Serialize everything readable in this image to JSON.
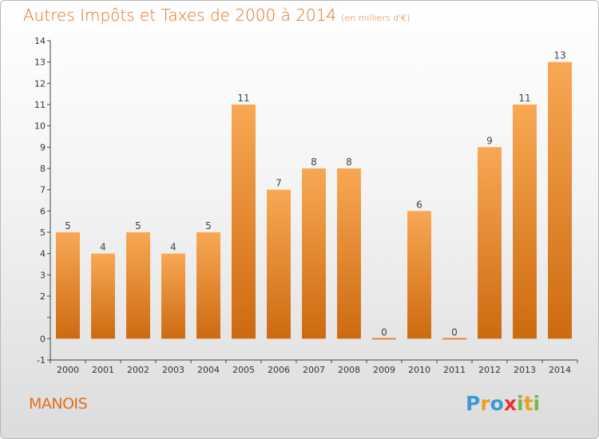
{
  "title": "Autres Impôts et Taxes de 2000 à 2014",
  "subtitle": "(en milliers d'€)",
  "commune": "MANOIS",
  "logo": {
    "text": "Proxiti",
    "letters": [
      {
        "ch": "P",
        "color": "#3a9ad9"
      },
      {
        "ch": "r",
        "color": "#f0a020"
      },
      {
        "ch": "o",
        "color": "#3a9ad9"
      },
      {
        "ch": "x",
        "color": "#e83030"
      },
      {
        "ch": "i",
        "color": "#7ab648"
      },
      {
        "ch": "t",
        "color": "#f0a020"
      },
      {
        "ch": "i",
        "color": "#7ab648"
      }
    ]
  },
  "colors": {
    "bar_light": "#f8a854",
    "bar_dark": "#cd6a10",
    "title": "#e0701a"
  },
  "chart_data": {
    "type": "bar",
    "title": "Autres Impôts et Taxes de 2000 à 2014",
    "subtitle": "(en milliers d'€)",
    "categories": [
      "2000",
      "2001",
      "2002",
      "2003",
      "2004",
      "2005",
      "2006",
      "2007",
      "2008",
      "2009",
      "2010",
      "2011",
      "2012",
      "2013",
      "2014"
    ],
    "values": [
      5,
      4,
      5,
      4,
      5,
      11,
      7,
      8,
      8,
      0,
      6,
      0,
      9,
      11,
      13
    ],
    "data_labels": [
      "5",
      "4",
      "5",
      "4",
      "5",
      "11",
      "7",
      "8",
      "8",
      "0",
      "6",
      "0",
      "9",
      "11",
      "13"
    ],
    "ylim": [
      -1,
      14
    ],
    "yticks": [
      "-1",
      "0",
      "",
      "2",
      "3",
      "4",
      "5",
      "6",
      "7",
      "8",
      "9",
      "10",
      "11",
      "12",
      "13",
      "14"
    ],
    "grid": false,
    "legend": "none"
  }
}
